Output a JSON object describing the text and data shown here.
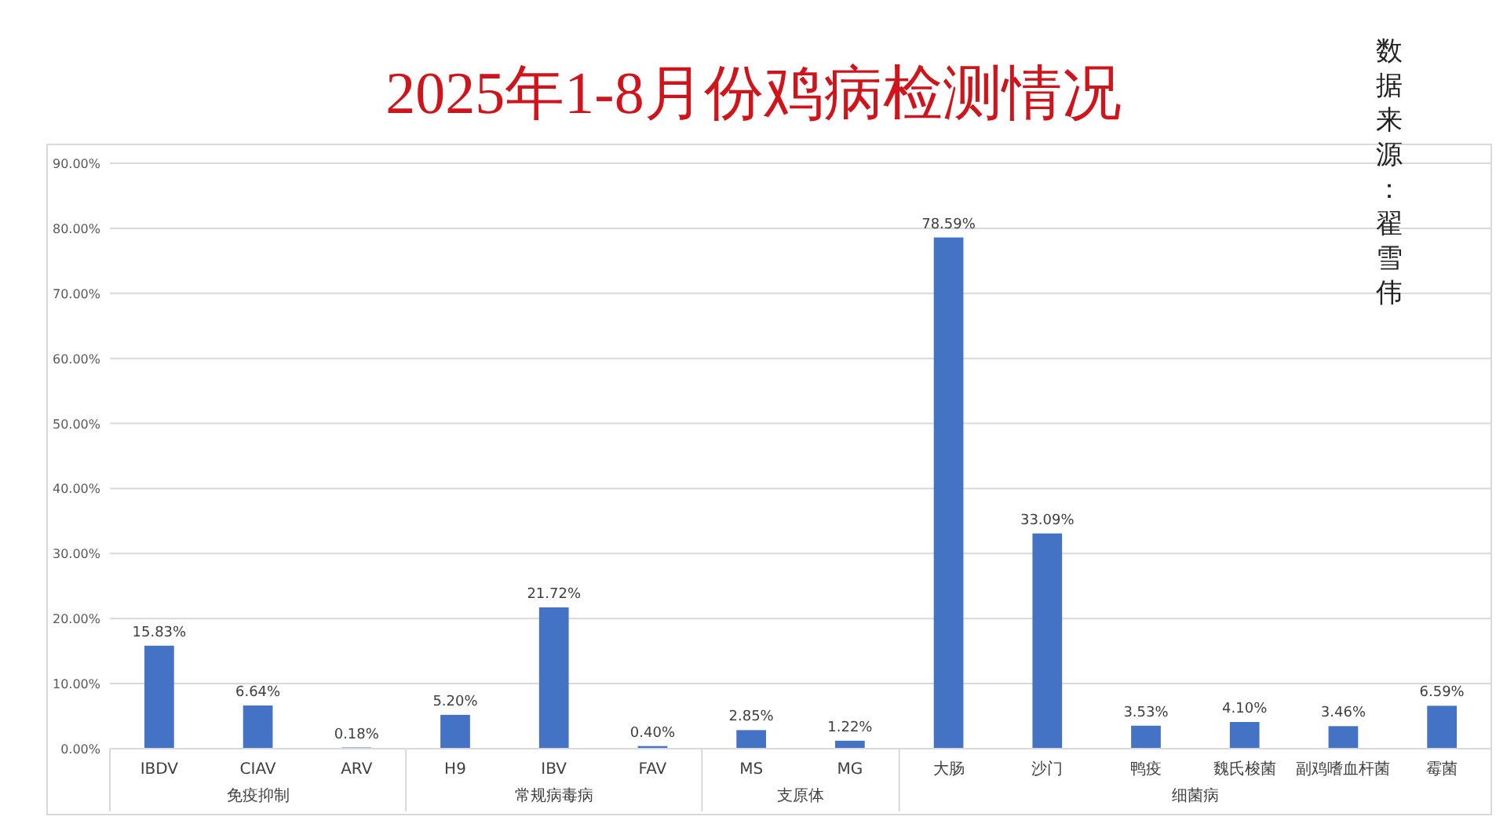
{
  "chart_data": {
    "type": "bar",
    "title": "2025年1-8月份鸡病检测情况",
    "categories": [
      "IBDV",
      "CIAV",
      "ARV",
      "H9",
      "IBV",
      "FAV",
      "MS",
      "MG",
      "大肠",
      "沙门",
      "鸭疫",
      "魏氏梭菌",
      "副鸡嗜血杆菌",
      "霉菌"
    ],
    "values": [
      15.83,
      6.64,
      0.18,
      5.2,
      21.72,
      0.4,
      2.85,
      1.22,
      78.59,
      33.09,
      3.53,
      4.1,
      3.46,
      6.59
    ],
    "value_labels": [
      "15.83%",
      "6.64%",
      "0.18%",
      "5.20%",
      "21.72%",
      "0.40%",
      "2.85%",
      "1.22%",
      "78.59%",
      "33.09%",
      "3.53%",
      "4.10%",
      "3.46%",
      "6.59%"
    ],
    "color": "#4472c4",
    "ylim": [
      0,
      90
    ],
    "yticks": [
      {
        "value": 0,
        "label": "0.00%"
      },
      {
        "value": 10,
        "label": "10.00%"
      },
      {
        "value": 20,
        "label": "20.00%"
      },
      {
        "value": 30,
        "label": "30.00%"
      },
      {
        "value": 40,
        "label": "40.00%"
      },
      {
        "value": 50,
        "label": "50.00%"
      },
      {
        "value": 60,
        "label": "60.00%"
      },
      {
        "value": 70,
        "label": "70.00%"
      },
      {
        "value": 80,
        "label": "80.00%"
      },
      {
        "value": 90,
        "label": "90.00%"
      }
    ],
    "grid": "y",
    "annotations": [
      "免疫抑制",
      "常规病毒病",
      "支原体",
      "细菌病",
      "数据来源：翟雪伟"
    ]
  }
}
